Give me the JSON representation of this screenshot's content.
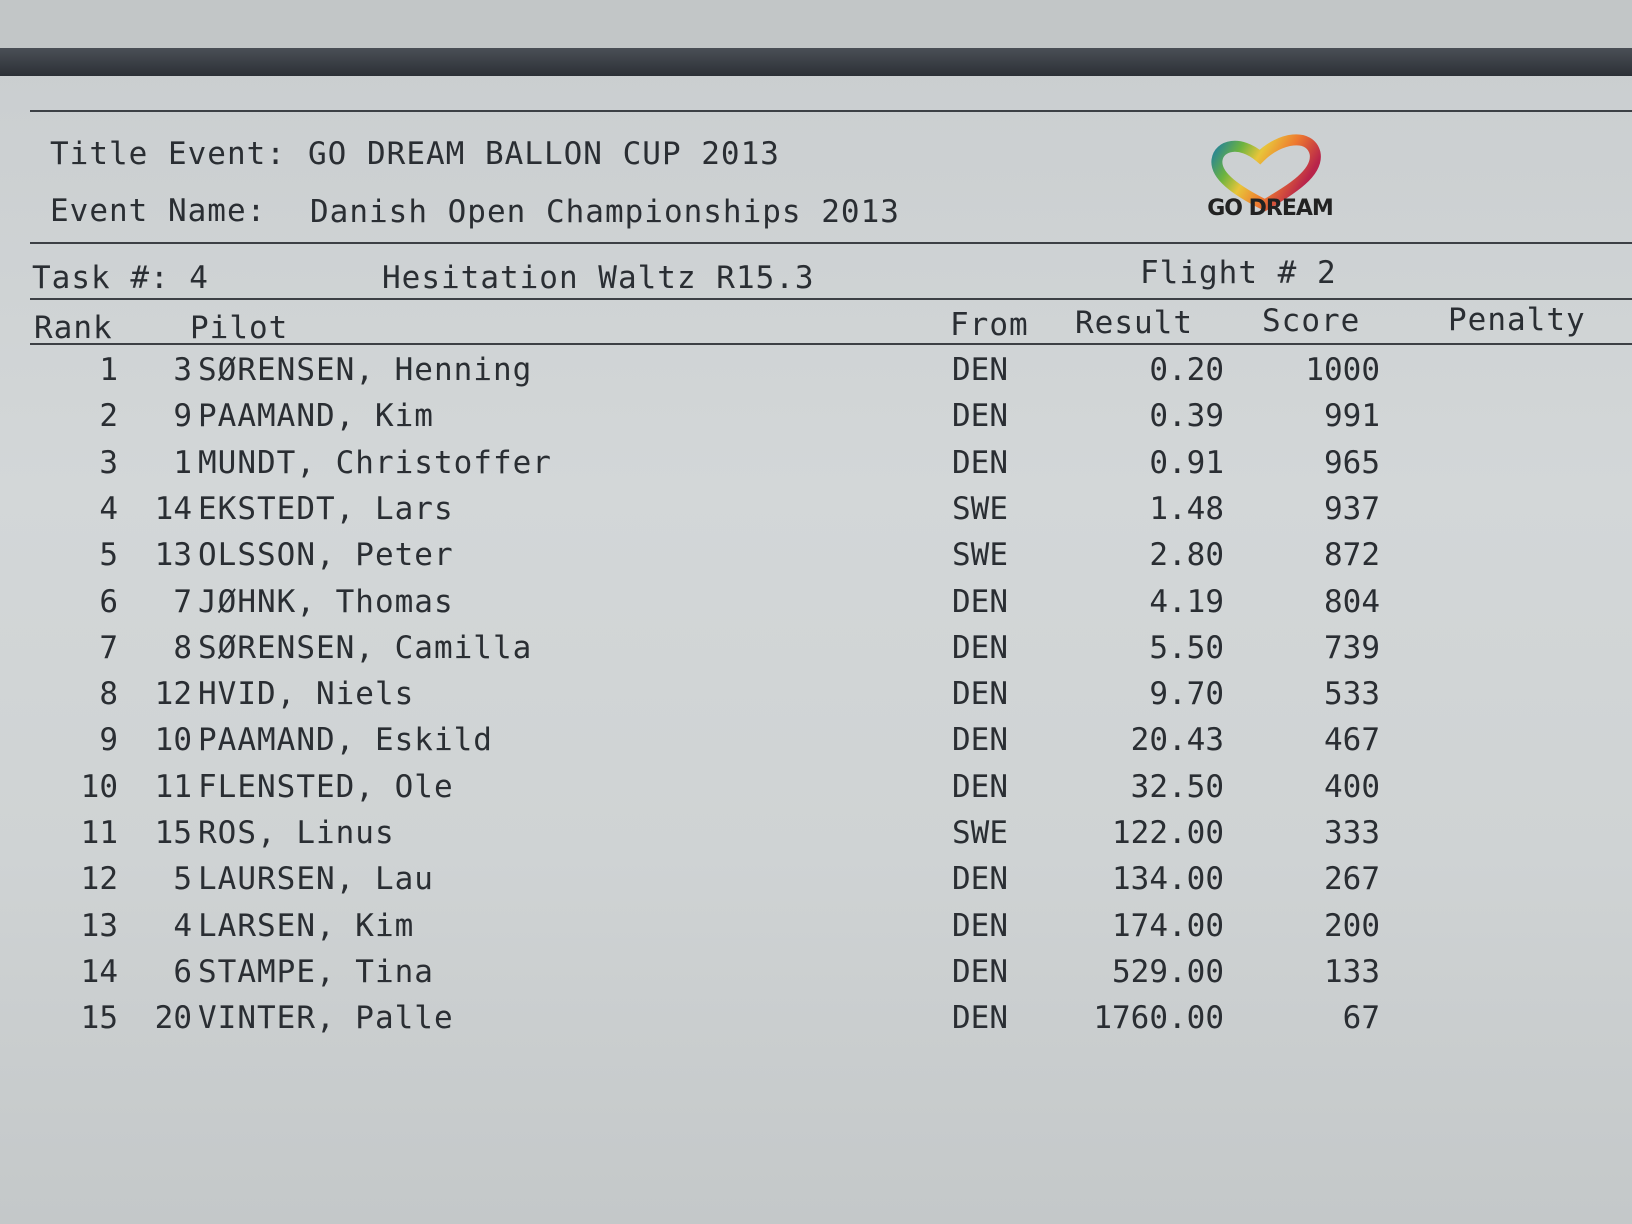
{
  "header": {
    "title_event_label": "Title Event:",
    "title_event_value": "GO DREAM BALLON CUP 2013",
    "event_name_label": "Event Name:",
    "event_name_value": "Danish Open Championships 2013",
    "logo_text": "GO DREAM"
  },
  "task": {
    "label": "Task #: 4",
    "name": "Hesitation Waltz R15.3",
    "flight": "Flight # 2"
  },
  "columns": {
    "rank": "Rank",
    "pilot": "Pilot",
    "from": "From",
    "result": "Result",
    "score": "Score",
    "penalty": "Penalty"
  },
  "rows": [
    {
      "rank": "1",
      "num": "3",
      "name": "SØRENSEN, Henning",
      "from": "DEN",
      "result": "0.20",
      "score": "1000"
    },
    {
      "rank": "2",
      "num": "9",
      "name": "PAAMAND, Kim",
      "from": "DEN",
      "result": "0.39",
      "score": "991"
    },
    {
      "rank": "3",
      "num": "1",
      "name": "MUNDT, Christoffer",
      "from": "DEN",
      "result": "0.91",
      "score": "965"
    },
    {
      "rank": "4",
      "num": "14",
      "name": "EKSTEDT, Lars",
      "from": "SWE",
      "result": "1.48",
      "score": "937"
    },
    {
      "rank": "5",
      "num": "13",
      "name": "OLSSON, Peter",
      "from": "SWE",
      "result": "2.80",
      "score": "872"
    },
    {
      "rank": "6",
      "num": "7",
      "name": "JØHNK, Thomas",
      "from": "DEN",
      "result": "4.19",
      "score": "804"
    },
    {
      "rank": "7",
      "num": "8",
      "name": "SØRENSEN, Camilla",
      "from": "DEN",
      "result": "5.50",
      "score": "739"
    },
    {
      "rank": "8",
      "num": "12",
      "name": "HVID, Niels",
      "from": "DEN",
      "result": "9.70",
      "score": "533"
    },
    {
      "rank": "9",
      "num": "10",
      "name": "PAAMAND, Eskild",
      "from": "DEN",
      "result": "20.43",
      "score": "467"
    },
    {
      "rank": "10",
      "num": "11",
      "name": "FLENSTED, Ole",
      "from": "DEN",
      "result": "32.50",
      "score": "400"
    },
    {
      "rank": "11",
      "num": "15",
      "name": "ROS, Linus",
      "from": "SWE",
      "result": "122.00",
      "score": "333"
    },
    {
      "rank": "12",
      "num": "5",
      "name": "LAURSEN, Lau",
      "from": "DEN",
      "result": "134.00",
      "score": "267"
    },
    {
      "rank": "13",
      "num": "4",
      "name": "LARSEN, Kim",
      "from": "DEN",
      "result": "174.00",
      "score": "200"
    },
    {
      "rank": "14",
      "num": "6",
      "name": "STAMPE, Tina",
      "from": "DEN",
      "result": "529.00",
      "score": "133"
    },
    {
      "rank": "15",
      "num": "20",
      "name": "VINTER, Palle",
      "from": "DEN",
      "result": "1760.00",
      "score": "67"
    }
  ]
}
